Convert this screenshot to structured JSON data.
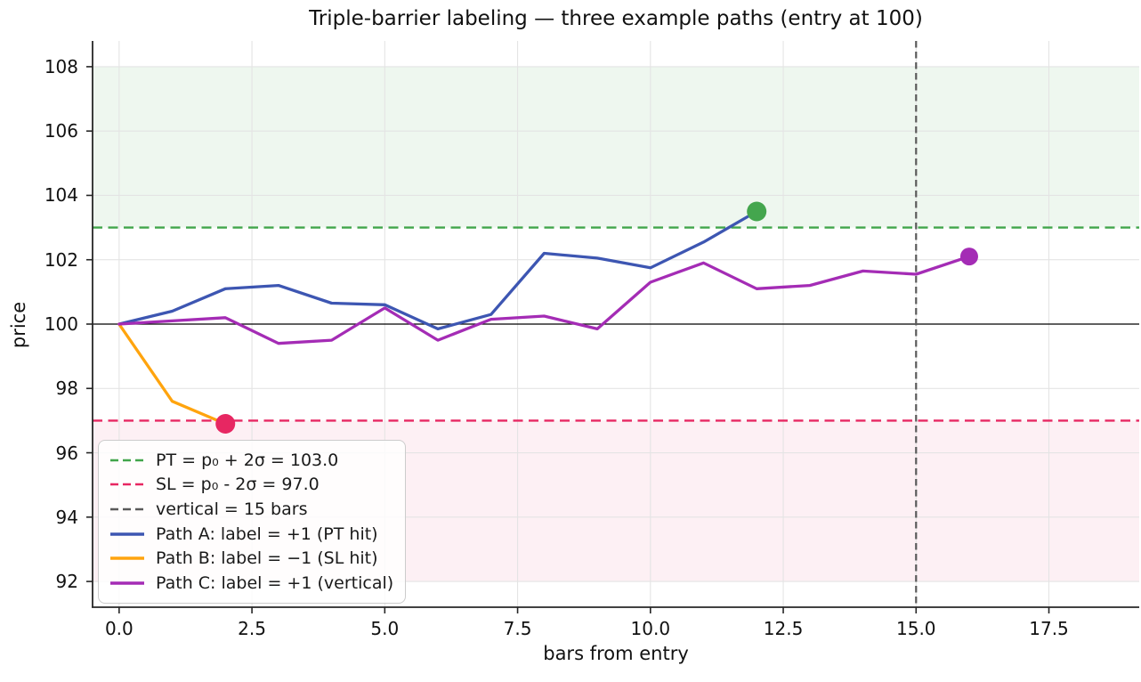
{
  "title": "Triple-barrier labeling — three example paths (entry at 100)",
  "chart_data": {
    "type": "line",
    "title": "Triple-barrier labeling — three example paths (entry at 100)",
    "xlabel": "bars from entry",
    "ylabel": "price",
    "xlim": [
      -0.5,
      19.2
    ],
    "ylim": [
      91.2,
      108.8
    ],
    "grid": true,
    "legend_position": "lower left",
    "x_ticks": [
      0.0,
      2.5,
      5.0,
      7.5,
      10.0,
      12.5,
      15.0,
      17.5
    ],
    "x_tick_labels": [
      "0.0",
      "2.5",
      "5.0",
      "7.5",
      "10.0",
      "12.5",
      "15.0",
      "17.5"
    ],
    "y_ticks": [
      92,
      94,
      96,
      98,
      100,
      102,
      104,
      106,
      108
    ],
    "y_tick_labels": [
      "92",
      "94",
      "96",
      "98",
      "100",
      "102",
      "104",
      "106",
      "108"
    ],
    "entry_price": 100,
    "entry_line_color": "#000000",
    "grid_color": "#e4e4e4",
    "barriers": {
      "profit_take": {
        "value": 103.0,
        "label": "PT = p₀ + 2σ = 103.0",
        "color": "#41a54b",
        "band": [
          103,
          108
        ],
        "band_fill": "rgba(66,166,76,0.09)"
      },
      "stop_loss": {
        "value": 97.0,
        "label": "SL = p₀ - 2σ = 97.0",
        "color": "#e72762",
        "band": [
          92,
          97
        ],
        "band_fill": "rgba(231,39,98,0.07)"
      },
      "vertical": {
        "value": 15,
        "label": "vertical = 15 bars",
        "color": "#5a5a5a"
      }
    },
    "series": [
      {
        "name": "Path A: label = +1 (PT hit)",
        "color": "#3d56b2",
        "x": [
          0,
          1,
          2,
          3,
          4,
          5,
          6,
          7,
          8,
          9,
          10,
          11,
          12
        ],
        "y": [
          100,
          100.4,
          101.1,
          101.2,
          100.65,
          100.6,
          99.85,
          100.3,
          102.2,
          102.05,
          101.75,
          102.55,
          103.5
        ],
        "end_marker": {
          "x": 12,
          "y": 103.5,
          "color": "#44a64e",
          "radius": 11
        }
      },
      {
        "name": "Path B: label = −1 (SL hit)",
        "color": "#ffa40e",
        "x": [
          0,
          1,
          2
        ],
        "y": [
          100,
          97.6,
          96.9
        ],
        "end_marker": {
          "x": 2,
          "y": 96.9,
          "color": "#e72762",
          "radius": 11
        }
      },
      {
        "name": "Path C: label = +1 (vertical)",
        "color": "#a42cb5",
        "x": [
          0,
          1,
          2,
          3,
          4,
          5,
          6,
          7,
          8,
          9,
          10,
          11,
          12,
          13,
          14,
          15,
          16
        ],
        "y": [
          100,
          100.1,
          100.2,
          99.4,
          99.5,
          100.5,
          99.5,
          100.15,
          100.25,
          99.85,
          101.3,
          101.9,
          101.1,
          101.2,
          101.65,
          101.55,
          102.1
        ],
        "end_marker": {
          "x": 16,
          "y": 102.1,
          "color": "#a42cb5",
          "radius": 10
        }
      }
    ],
    "legend": [
      {
        "label": "PT = p₀ + 2σ = 103.0",
        "color": "#41a54b",
        "dashed": true
      },
      {
        "label": "SL = p₀ - 2σ = 97.0",
        "color": "#e72762",
        "dashed": true
      },
      {
        "label": "vertical = 15 bars",
        "color": "#5a5a5a",
        "dashed": true
      },
      {
        "label": "Path A: label = +1 (PT hit)",
        "color": "#3d56b2",
        "dashed": false
      },
      {
        "label": "Path B: label = −1 (SL hit)",
        "color": "#ffa40e",
        "dashed": false
      },
      {
        "label": "Path C: label = +1 (vertical)",
        "color": "#a42cb5",
        "dashed": false
      }
    ]
  }
}
